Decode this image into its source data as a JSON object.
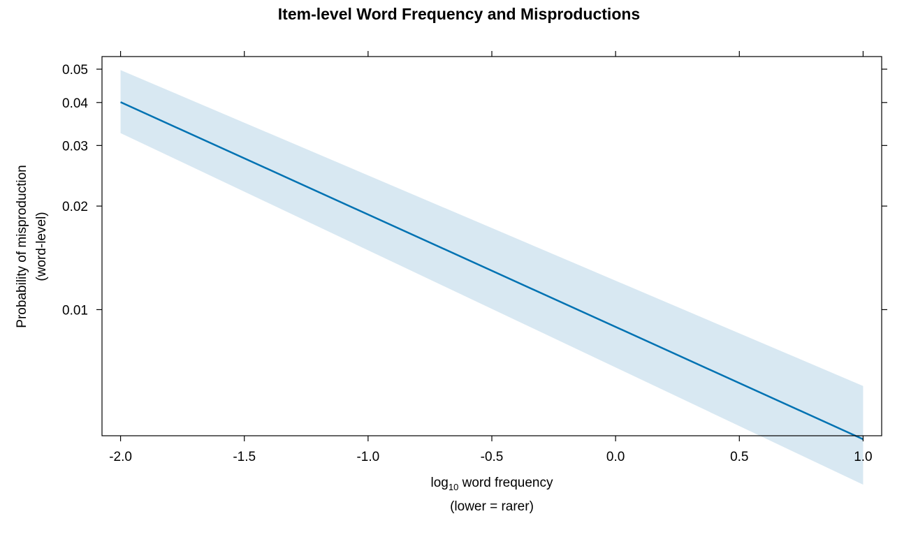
{
  "chart_data": {
    "type": "line",
    "title": "Item-level Word Frequency and Misproductions",
    "xlabel": {
      "prefix": "log",
      "subscript": "10",
      "rest": " word frequency",
      "line2": "(lower = rarer)"
    },
    "ylabel": {
      "line1": "Probability of misproduction",
      "line2": "(word-level)"
    },
    "x_ticks": [
      {
        "value": -2.0,
        "label": "-2.0"
      },
      {
        "value": -1.5,
        "label": "-1.5"
      },
      {
        "value": -1.0,
        "label": "-1.0"
      },
      {
        "value": -0.5,
        "label": "-0.5"
      },
      {
        "value": 0.0,
        "label": "0.0"
      },
      {
        "value": 0.5,
        "label": "0.5"
      },
      {
        "value": 1.0,
        "label": "1.0"
      }
    ],
    "y_ticks": [
      {
        "value": 0.01,
        "label": "0.01"
      },
      {
        "value": 0.02,
        "label": "0.02"
      },
      {
        "value": 0.03,
        "label": "0.03"
      },
      {
        "value": 0.04,
        "label": "0.04"
      },
      {
        "value": 0.05,
        "label": "0.05"
      }
    ],
    "y_scale": "log",
    "xlim": [
      -2.075,
      1.075
    ],
    "ylim": [
      0.0043,
      0.0544
    ],
    "grid": false,
    "legend": "none",
    "series": [
      {
        "x": [
          -2.0,
          1.0
        ],
        "y": [
          0.0401,
          0.0042
        ],
        "lower": [
          0.0326,
          0.0031
        ],
        "upper": [
          0.0497,
          0.006
        ]
      }
    ],
    "colors": {
      "line": "#0072B2",
      "band": "#D8E8F2",
      "axis": "#000000"
    }
  }
}
